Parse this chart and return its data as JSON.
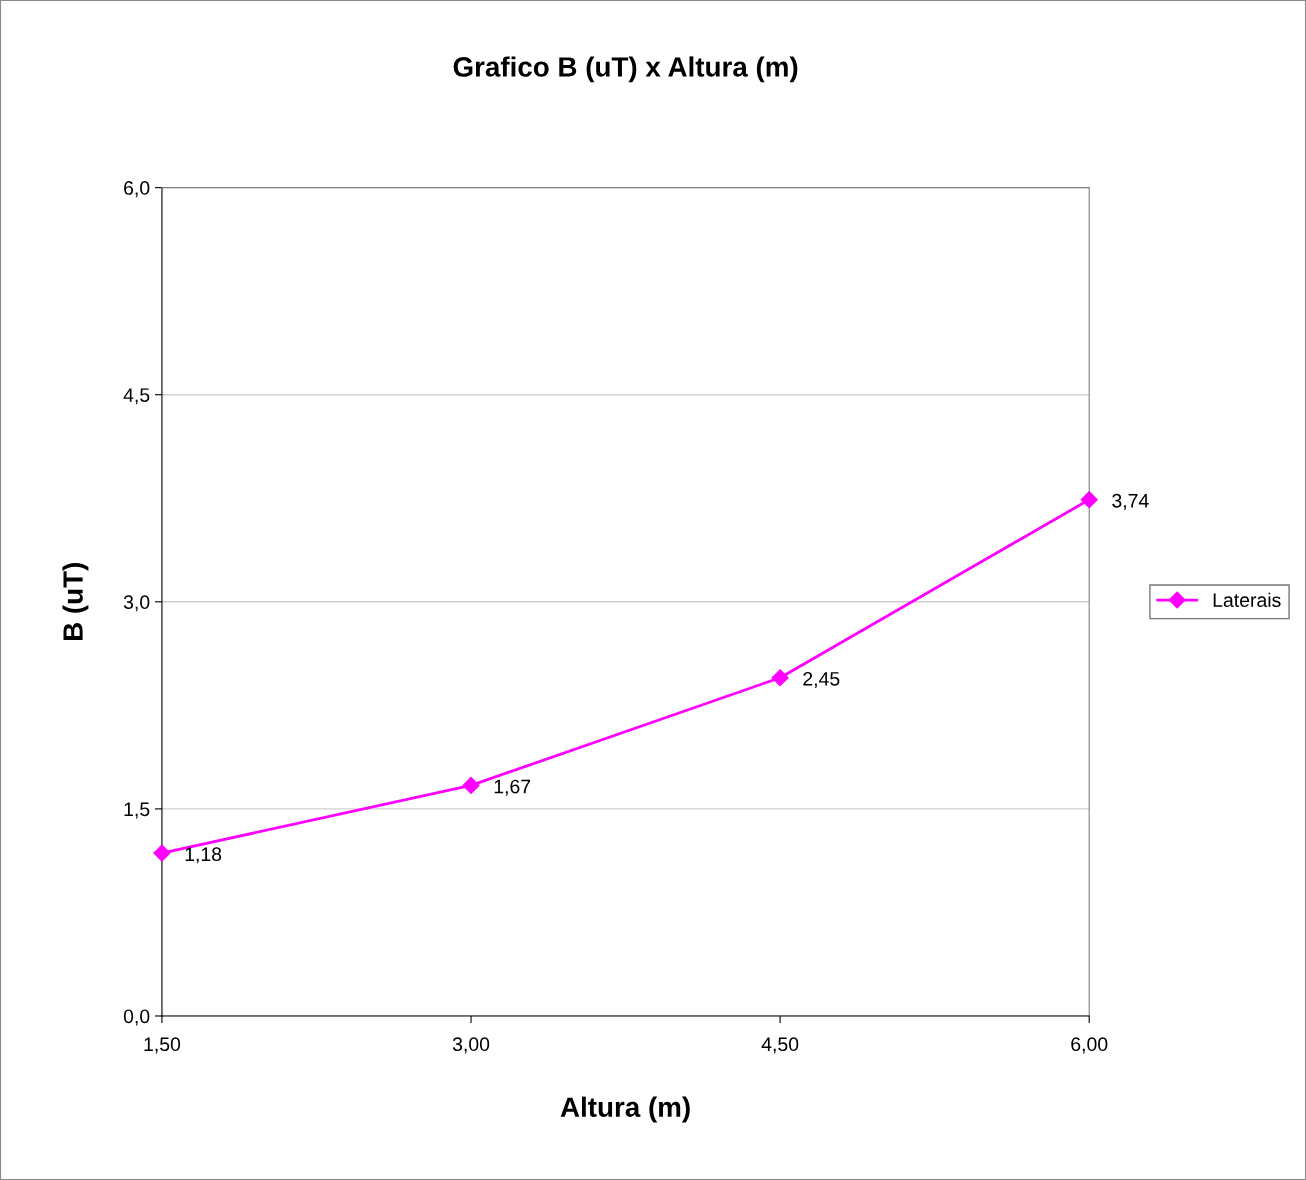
{
  "chart_data": {
    "type": "line",
    "title": "Grafico B (uT) x Altura (m)",
    "xlabel": "Altura (m)",
    "ylabel": "B (uT)",
    "x": [
      1.5,
      3.0,
      4.5,
      6.0
    ],
    "series": [
      {
        "name": "Laterais",
        "color": "#ff00ff",
        "values": [
          1.18,
          1.67,
          2.45,
          3.74
        ],
        "value_labels": [
          "1,18",
          "1,67",
          "2,45",
          "3,74"
        ]
      }
    ],
    "xlim": [
      1.5,
      6.0
    ],
    "xticks": [
      {
        "value": 1.5,
        "label": "1,50"
      },
      {
        "value": 3.0,
        "label": "3,00"
      },
      {
        "value": 4.5,
        "label": "4,50"
      },
      {
        "value": 6.0,
        "label": "6,00"
      }
    ],
    "ylim": [
      0,
      6
    ],
    "yticks": [
      {
        "value": 0,
        "label": "0,0"
      },
      {
        "value": 1.5,
        "label": "1,5"
      },
      {
        "value": 3.0,
        "label": "3,0"
      },
      {
        "value": 4.5,
        "label": "4,5"
      },
      {
        "value": 6,
        "label": "6,0"
      }
    ],
    "grid": "y",
    "legend": "right",
    "marker": "diamond",
    "line_style": "solid"
  }
}
